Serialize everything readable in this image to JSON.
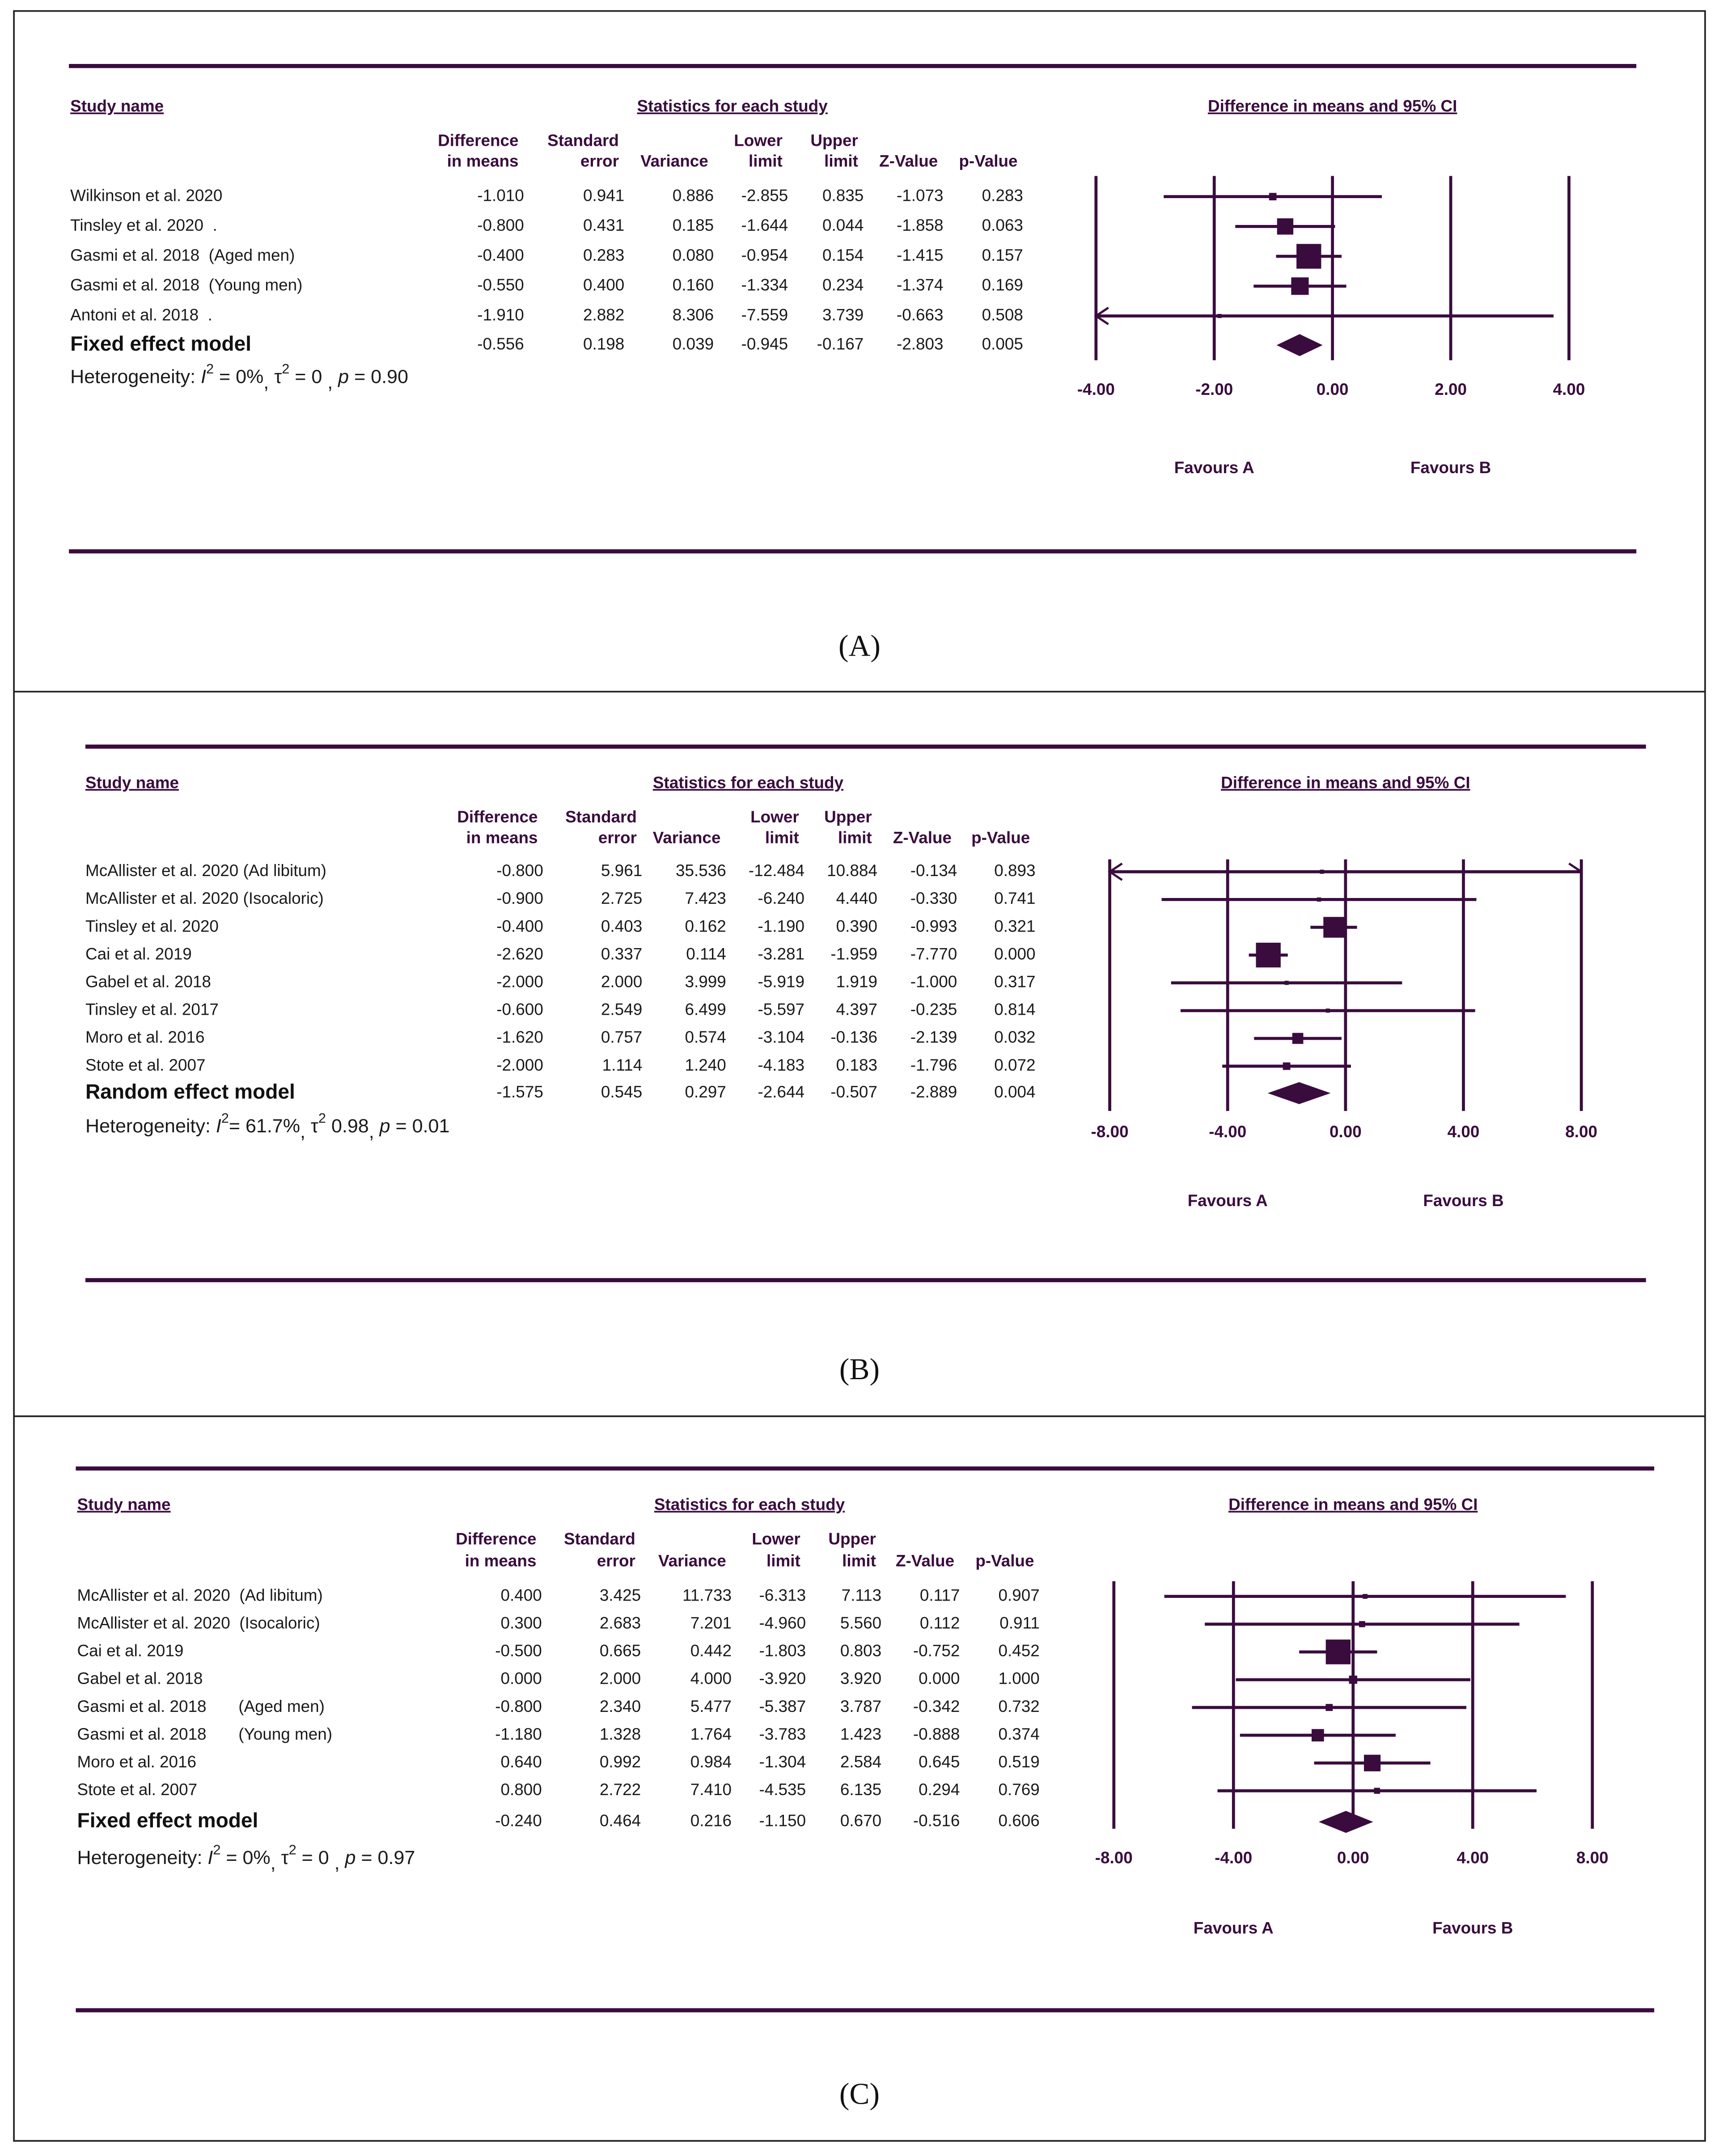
{
  "chart_data": [
    {
      "type": "forest",
      "label": "(A)",
      "study_header": "Study name",
      "group_header": "Statistics for each study",
      "title": "Difference in means and 95% CI",
      "categories": [
        "Wilkinson et al. 2020",
        "Tinsley et al. 2020  .",
        "Gasmi et al. 2018  (Aged men)",
        "Gasmi et al. 2018  (Young men)",
        "Antoni et al. 2018  ."
      ],
      "columns": [
        {
          "header": [
            "Difference",
            "in means"
          ],
          "values": [
            -1.01,
            -0.8,
            -0.4,
            -0.55,
            -1.91
          ],
          "value_labels": [
            "-1.010",
            "-0.800",
            "-0.400",
            "-0.550",
            "-1.910"
          ]
        },
        {
          "header": [
            "Standard",
            "error"
          ],
          "values": [
            0.941,
            0.431,
            0.283,
            0.4,
            2.882
          ],
          "value_labels": [
            "0.941",
            "0.431",
            "0.283",
            "0.400",
            "2.882"
          ]
        },
        {
          "header": [
            "Variance"
          ],
          "values": [
            0.886,
            0.185,
            0.08,
            0.16,
            8.306
          ],
          "value_labels": [
            "0.886",
            "0.185",
            "0.080",
            "0.160",
            "8.306"
          ]
        },
        {
          "header": [
            "Lower",
            "limit"
          ],
          "values": [
            -2.855,
            -1.644,
            -0.954,
            -1.334,
            -7.559
          ],
          "value_labels": [
            "-2.855",
            "-1.644",
            "-0.954",
            "-1.334",
            "-7.559"
          ]
        },
        {
          "header": [
            "Upper",
            "limit"
          ],
          "values": [
            0.835,
            0.044,
            0.154,
            0.234,
            3.739
          ],
          "value_labels": [
            "0.835",
            "0.044",
            "0.154",
            "0.234",
            "3.739"
          ]
        },
        {
          "header": [
            "Z-Value"
          ],
          "values": [
            -1.073,
            -1.858,
            -1.415,
            -1.374,
            -0.663
          ],
          "value_labels": [
            "-1.073",
            "-1.858",
            "-1.415",
            "-1.374",
            "-0.663"
          ]
        },
        {
          "header": [
            "p-Value"
          ],
          "values": [
            0.283,
            0.063,
            0.157,
            0.169,
            0.508
          ],
          "value_labels": [
            "0.283",
            "0.063",
            "0.157",
            "0.169",
            "0.508"
          ]
        }
      ],
      "summary": {
        "name": "Fixed effect model",
        "values": [
          -0.556,
          0.198,
          0.039,
          -0.945,
          -0.167,
          -2.803,
          0.005
        ],
        "value_labels": [
          "-0.556",
          "0.198",
          "0.039",
          "-0.945",
          "-0.167",
          "-2.803",
          "0.005"
        ]
      },
      "heterogeneity": [
        {
          "text": "Heterogeneity: "
        },
        {
          "text": "I",
          "style": "italic"
        },
        {
          "text": "2",
          "style": "sup"
        },
        {
          "text": " = 0%"
        },
        {
          "text": ", ",
          "style": "sub"
        },
        {
          "text": "τ"
        },
        {
          "text": "2",
          "style": "sup"
        },
        {
          "text": " = 0 "
        },
        {
          "text": ", ",
          "style": "sub"
        },
        {
          "text": "p",
          "style": "italic"
        },
        {
          "text": " = 0.90"
        }
      ],
      "xlim": [
        -4,
        4
      ],
      "xticks": [
        {
          "value": -4,
          "label": "-4.00"
        },
        {
          "value": -2,
          "label": "-2.00"
        },
        {
          "value": 0,
          "label": "0.00"
        },
        {
          "value": 2,
          "label": "2.00"
        },
        {
          "value": 4,
          "label": "4.00"
        }
      ],
      "favours": [
        "Favours A",
        "Favours B"
      ],
      "color": "#3a0c3e"
    },
    {
      "type": "forest",
      "label": "(B)",
      "study_header": "Study name",
      "group_header": "Statistics for each study",
      "title": "Difference in means and 95% CI",
      "categories": [
        "McAllister et al. 2020 (Ad libitum)",
        "McAllister et al. 2020 (Isocaloric)",
        "Tinsley et al. 2020",
        "Cai et al. 2019",
        "Gabel et al. 2018",
        "Tinsley et al. 2017",
        "Moro et al. 2016",
        "Stote et al. 2007"
      ],
      "columns": [
        {
          "header": [
            "Difference",
            "in means"
          ],
          "values": [
            -0.8,
            -0.9,
            -0.4,
            -2.62,
            -2.0,
            -0.6,
            -1.62,
            -2.0
          ],
          "value_labels": [
            "-0.800",
            "-0.900",
            "-0.400",
            "-2.620",
            "-2.000",
            "-0.600",
            "-1.620",
            "-2.000"
          ]
        },
        {
          "header": [
            "Standard",
            "error"
          ],
          "values": [
            5.961,
            2.725,
            0.403,
            0.337,
            2.0,
            2.549,
            0.757,
            1.114
          ],
          "value_labels": [
            "5.961",
            "2.725",
            "0.403",
            "0.337",
            "2.000",
            "2.549",
            "0.757",
            "1.114"
          ]
        },
        {
          "header": [
            "Variance"
          ],
          "values": [
            35.536,
            7.423,
            0.162,
            0.114,
            3.999,
            6.499,
            0.574,
            1.24
          ],
          "value_labels": [
            "35.536",
            "7.423",
            "0.162",
            "0.114",
            "3.999",
            "6.499",
            "0.574",
            "1.240"
          ]
        },
        {
          "header": [
            "Lower",
            "limit"
          ],
          "values": [
            -12.484,
            -6.24,
            -1.19,
            -3.281,
            -5.919,
            -5.597,
            -3.104,
            -4.183
          ],
          "value_labels": [
            "-12.484",
            "-6.240",
            "-1.190",
            "-3.281",
            "-5.919",
            "-5.597",
            "-3.104",
            "-4.183"
          ]
        },
        {
          "header": [
            "Upper",
            "limit"
          ],
          "values": [
            10.884,
            4.44,
            0.39,
            -1.959,
            1.919,
            4.397,
            -0.136,
            0.183
          ],
          "value_labels": [
            "10.884",
            "4.440",
            "0.390",
            "-1.959",
            "1.919",
            "4.397",
            "-0.136",
            "0.183"
          ]
        },
        {
          "header": [
            "Z-Value"
          ],
          "values": [
            -0.134,
            -0.33,
            -0.993,
            -7.77,
            -1.0,
            -0.235,
            -2.139,
            -1.796
          ],
          "value_labels": [
            "-0.134",
            "-0.330",
            "-0.993",
            "-7.770",
            "-1.000",
            "-0.235",
            "-2.139",
            "-1.796"
          ]
        },
        {
          "header": [
            "p-Value"
          ],
          "values": [
            0.893,
            0.741,
            0.321,
            0.0,
            0.317,
            0.814,
            0.032,
            0.072
          ],
          "value_labels": [
            "0.893",
            "0.741",
            "0.321",
            "0.000",
            "0.317",
            "0.814",
            "0.032",
            "0.072"
          ]
        }
      ],
      "summary": {
        "name": "Random effect model",
        "values": [
          -1.575,
          0.545,
          0.297,
          -2.644,
          -0.507,
          -2.889,
          0.004
        ],
        "value_labels": [
          "-1.575",
          "0.545",
          "0.297",
          "-2.644",
          "-0.507",
          "-2.889",
          "0.004"
        ]
      },
      "heterogeneity": [
        {
          "text": "Heterogeneity: "
        },
        {
          "text": "I",
          "style": "italic"
        },
        {
          "text": "2",
          "style": "sup"
        },
        {
          "text": "= 61.7%"
        },
        {
          "text": ", ",
          "style": "sub"
        },
        {
          "text": "τ"
        },
        {
          "text": "2",
          "style": "sup"
        },
        {
          "text": " 0.98"
        },
        {
          "text": ", ",
          "style": "sub"
        },
        {
          "text": "p",
          "style": "italic"
        },
        {
          "text": " = 0.01"
        }
      ],
      "xlim": [
        -8,
        8
      ],
      "xticks": [
        {
          "value": -8,
          "label": "-8.00"
        },
        {
          "value": -4,
          "label": "-4.00"
        },
        {
          "value": 0,
          "label": "0.00"
        },
        {
          "value": 4,
          "label": "4.00"
        },
        {
          "value": 8,
          "label": "8.00"
        }
      ],
      "favours": [
        "Favours A",
        "Favours B"
      ],
      "color": "#3a0c3e"
    },
    {
      "type": "forest",
      "label": "(C)",
      "study_header": "Study name",
      "group_header": "Statistics for each study",
      "title": "Difference in means and 95% CI",
      "categories": [
        "McAllister et al. 2020  (Ad libitum)",
        "McAllister et al. 2020  (Isocaloric)",
        "Cai et al. 2019",
        "Gabel et al. 2018",
        "Gasmi et al. 2018       (Aged men)",
        "Gasmi et al. 2018       (Young men)",
        "Moro et al. 2016",
        "Stote et al. 2007"
      ],
      "columns": [
        {
          "header": [
            "Difference",
            "in means"
          ],
          "values": [
            0.4,
            0.3,
            -0.5,
            0.0,
            -0.8,
            -1.18,
            0.64,
            0.8
          ],
          "value_labels": [
            "0.400",
            "0.300",
            "-0.500",
            "0.000",
            "-0.800",
            "-1.180",
            "0.640",
            "0.800"
          ]
        },
        {
          "header": [
            "Standard",
            "error"
          ],
          "values": [
            3.425,
            2.683,
            0.665,
            2.0,
            2.34,
            1.328,
            0.992,
            2.722
          ],
          "value_labels": [
            "3.425",
            "2.683",
            "0.665",
            "2.000",
            "2.340",
            "1.328",
            "0.992",
            "2.722"
          ]
        },
        {
          "header": [
            "Variance"
          ],
          "values": [
            11.733,
            7.201,
            0.442,
            4.0,
            5.477,
            1.764,
            0.984,
            7.41
          ],
          "value_labels": [
            "11.733",
            "7.201",
            "0.442",
            "4.000",
            "5.477",
            "1.764",
            "0.984",
            "7.410"
          ]
        },
        {
          "header": [
            "Lower",
            "limit"
          ],
          "values": [
            -6.313,
            -4.96,
            -1.803,
            -3.92,
            -5.387,
            -3.783,
            -1.304,
            -4.535
          ],
          "value_labels": [
            "-6.313",
            "-4.960",
            "-1.803",
            "-3.920",
            "-5.387",
            "-3.783",
            "-1.304",
            "-4.535"
          ]
        },
        {
          "header": [
            "Upper",
            "limit"
          ],
          "values": [
            7.113,
            5.56,
            0.803,
            3.92,
            3.787,
            1.423,
            2.584,
            6.135
          ],
          "value_labels": [
            "7.113",
            "5.560",
            "0.803",
            "3.920",
            "3.787",
            "1.423",
            "2.584",
            "6.135"
          ]
        },
        {
          "header": [
            "Z-Value"
          ],
          "values": [
            0.117,
            0.112,
            -0.752,
            0.0,
            -0.342,
            -0.888,
            0.645,
            0.294
          ],
          "value_labels": [
            "0.117",
            "0.112",
            "-0.752",
            "0.000",
            "-0.342",
            "-0.888",
            "0.645",
            "0.294"
          ]
        },
        {
          "header": [
            "p-Value"
          ],
          "values": [
            0.907,
            0.911,
            0.452,
            1.0,
            0.732,
            0.374,
            0.519,
            0.769
          ],
          "value_labels": [
            "0.907",
            "0.911",
            "0.452",
            "1.000",
            "0.732",
            "0.374",
            "0.519",
            "0.769"
          ]
        }
      ],
      "summary": {
        "name": "Fixed effect model",
        "values": [
          -0.24,
          0.464,
          0.216,
          -1.15,
          0.67,
          -0.516,
          0.606
        ],
        "value_labels": [
          "-0.240",
          "0.464",
          "0.216",
          "-1.150",
          "0.670",
          "-0.516",
          "0.606"
        ]
      },
      "heterogeneity": [
        {
          "text": "Heterogeneity: "
        },
        {
          "text": "I",
          "style": "italic"
        },
        {
          "text": "2",
          "style": "sup"
        },
        {
          "text": " = 0%"
        },
        {
          "text": ", ",
          "style": "sub"
        },
        {
          "text": "τ"
        },
        {
          "text": "2",
          "style": "sup"
        },
        {
          "text": " = 0 "
        },
        {
          "text": ", ",
          "style": "sub"
        },
        {
          "text": "p",
          "style": "italic"
        },
        {
          "text": " = 0.97"
        }
      ],
      "xlim": [
        -8,
        8
      ],
      "xticks": [
        {
          "value": -8,
          "label": "-8.00"
        },
        {
          "value": -4,
          "label": "-4.00"
        },
        {
          "value": 0,
          "label": "0.00"
        },
        {
          "value": 4,
          "label": "4.00"
        },
        {
          "value": 8,
          "label": "8.00"
        }
      ],
      "favours": [
        "Favours A",
        "Favours B"
      ],
      "color": "#3a0c3e"
    }
  ]
}
